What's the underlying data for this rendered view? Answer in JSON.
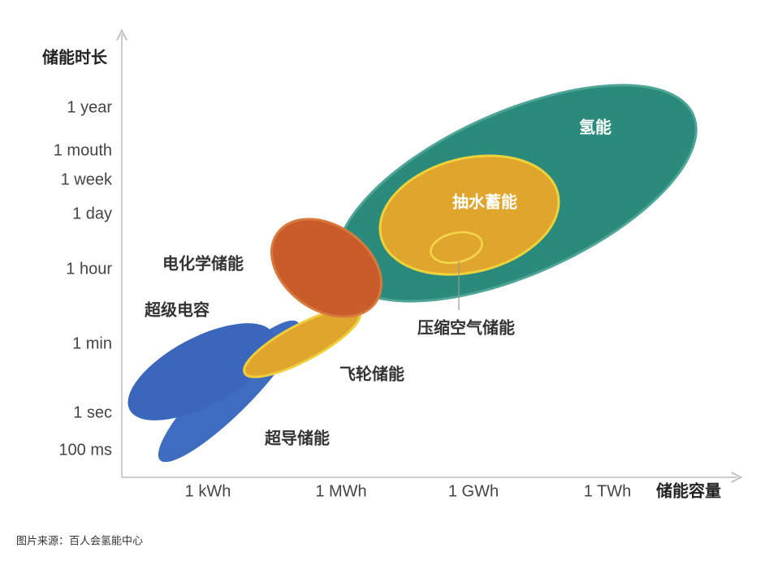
{
  "y_axis": {
    "title": "储能时长",
    "ticks": [
      "1 year",
      "1 mouth",
      "1 week",
      "1 day",
      "1 hour",
      "1 min",
      "1 sec",
      "100 ms"
    ]
  },
  "x_axis": {
    "title": "储能容量",
    "ticks": [
      "1 kWh",
      "1 MWh",
      "1 GWh",
      "1 TWh"
    ]
  },
  "regions": [
    {
      "label": "氢能"
    },
    {
      "label": "抽水蓄能"
    },
    {
      "label": "压缩空气储能"
    },
    {
      "label": "电化学储能"
    },
    {
      "label": "飞轮储能"
    },
    {
      "label": "超级电容"
    },
    {
      "label": "超导储能"
    }
  ],
  "caption": "图片来源：百人会氢能中心"
}
